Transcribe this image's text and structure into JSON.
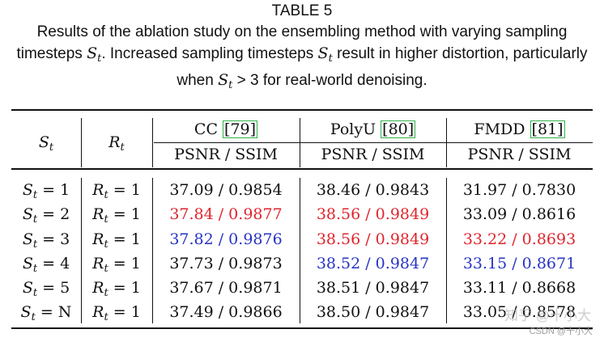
{
  "table_label": "TABLE 5",
  "caption": {
    "part1": "Results of the ablation study on the ensembling method with varying sampling timesteps ",
    "st1": "S",
    "part2": ". Increased sampling timesteps ",
    "st2": "S",
    "part3": " result in higher distortion, particularly when ",
    "st3": "S",
    "cond": " > 3",
    "part4": " for real-world denoising."
  },
  "header": {
    "col_s": "S",
    "col_r": "R",
    "sub_t": "t",
    "datasets": [
      {
        "name": "CC ",
        "ref": "[79]"
      },
      {
        "name": "PolyU ",
        "ref": "[80]"
      },
      {
        "name": "FMDD ",
        "ref": "[81]"
      }
    ],
    "metric": "PSNR / SSIM"
  },
  "rows": [
    {
      "s": "S",
      "s_sub": "t",
      "s_val": " = 1",
      "r": "R",
      "r_sub": "t",
      "r_val": " = 1",
      "cc": "37.09 / 0.9854",
      "polyu": "38.46 / 0.9843",
      "fmdd": "31.97 / 0.7830",
      "cc_color": "black",
      "polyu_color": "black",
      "fmdd_color": "black"
    },
    {
      "s": "S",
      "s_sub": "t",
      "s_val": " = 2",
      "r": "R",
      "r_sub": "t",
      "r_val": " = 1",
      "cc": "37.84 / 0.9877",
      "polyu": "38.56 / 0.9849",
      "fmdd": "33.09 / 0.8616",
      "cc_color": "red",
      "polyu_color": "red",
      "fmdd_color": "black"
    },
    {
      "s": "S",
      "s_sub": "t",
      "s_val": " = 3",
      "r": "R",
      "r_sub": "t",
      "r_val": " = 1",
      "cc": "37.82 / 0.9876",
      "polyu": "38.56 / 0.9849",
      "fmdd": "33.22 / 0.8693",
      "cc_color": "blue",
      "polyu_color": "red",
      "fmdd_color": "red"
    },
    {
      "s": "S",
      "s_sub": "t",
      "s_val": " = 4",
      "r": "R",
      "r_sub": "t",
      "r_val": " = 1",
      "cc": "37.73 / 0.9873",
      "polyu": "38.52 / 0.9847",
      "fmdd": "33.15 / 0.8671",
      "cc_color": "black",
      "polyu_color": "blue",
      "fmdd_color": "blue"
    },
    {
      "s": "S",
      "s_sub": "t",
      "s_val": " = 5",
      "r": "R",
      "r_sub": "t",
      "r_val": " = 1",
      "cc": "37.67 / 0.9871",
      "polyu": "38.51 / 0.9847",
      "fmdd": "33.11 / 0.8668",
      "cc_color": "black",
      "polyu_color": "black",
      "fmdd_color": "black"
    },
    {
      "s": "S",
      "s_sub": "t",
      "s_val": " = N",
      "r": "R",
      "r_sub": "t",
      "r_val": " = 1",
      "cc": "37.49 / 0.9866",
      "polyu": "38.50 / 0.9847",
      "fmdd": "33.05 / 0.8578",
      "cc_color": "black",
      "polyu_color": "black",
      "fmdd_color": "black"
    }
  ],
  "watermark": {
    "line1": "知乎 @十小大",
    "line2": "CSDN @十小大"
  }
}
